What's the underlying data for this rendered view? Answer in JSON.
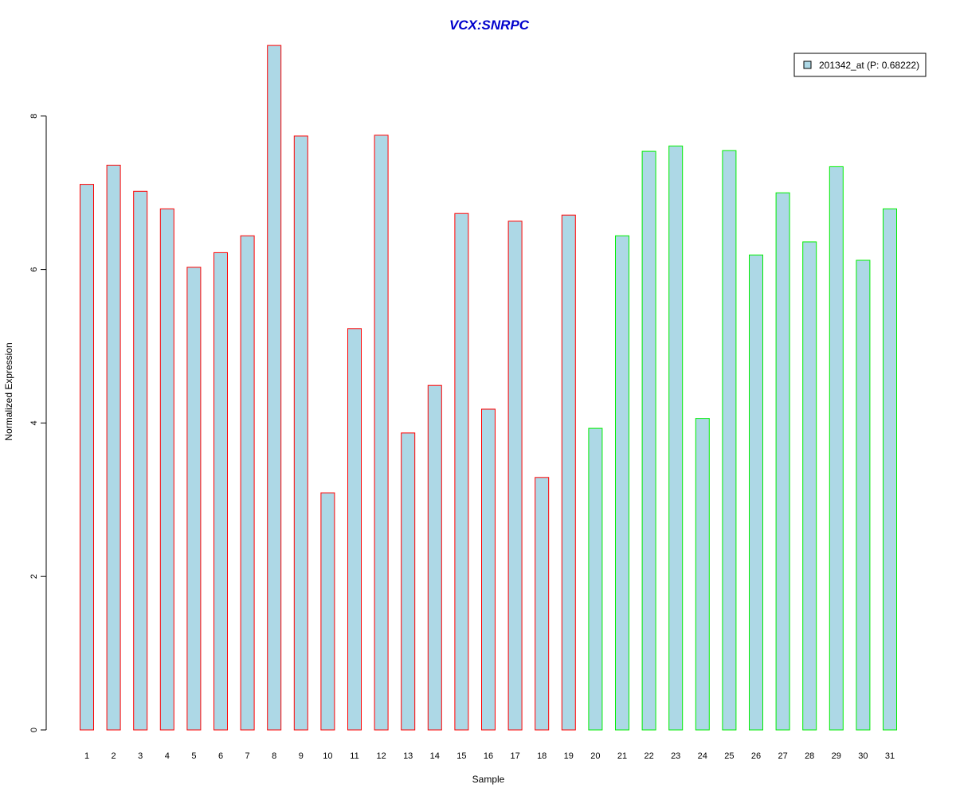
{
  "chart_data": {
    "type": "bar",
    "title": "VCX:SNRPC",
    "xlabel": "Sample",
    "ylabel": "Normalized Expression",
    "ylim": [
      0,
      9
    ],
    "yticks": [
      0,
      2,
      4,
      6,
      8
    ],
    "grid": false,
    "legend_position": "top-right",
    "categories": [
      "1",
      "2",
      "3",
      "4",
      "5",
      "6",
      "7",
      "8",
      "9",
      "10",
      "11",
      "12",
      "13",
      "14",
      "15",
      "16",
      "17",
      "18",
      "19",
      "20",
      "21",
      "22",
      "23",
      "24",
      "25",
      "26",
      "27",
      "28",
      "29",
      "30",
      "31"
    ],
    "series": [
      {
        "name": "201342_at (P: 0.68222)",
        "values": [
          7.11,
          7.36,
          7.02,
          6.79,
          6.03,
          6.22,
          6.44,
          8.92,
          7.74,
          3.09,
          5.23,
          7.75,
          3.87,
          4.49,
          6.73,
          4.18,
          6.63,
          3.29,
          6.71,
          3.93,
          6.44,
          7.54,
          7.61,
          4.06,
          7.55,
          6.19,
          7.0,
          6.36,
          7.34,
          6.12,
          6.79
        ],
        "group": [
          "red",
          "red",
          "red",
          "red",
          "red",
          "red",
          "red",
          "red",
          "red",
          "red",
          "red",
          "red",
          "red",
          "red",
          "red",
          "red",
          "red",
          "red",
          "red",
          "green",
          "green",
          "green",
          "green",
          "green",
          "green",
          "green",
          "green",
          "green",
          "green",
          "green",
          "green"
        ]
      }
    ],
    "colors": {
      "title": "#0000cc",
      "bar_fill": "#add8e6",
      "border_red": "#ff0000",
      "border_green": "#00ee00",
      "axis": "#000000"
    }
  }
}
